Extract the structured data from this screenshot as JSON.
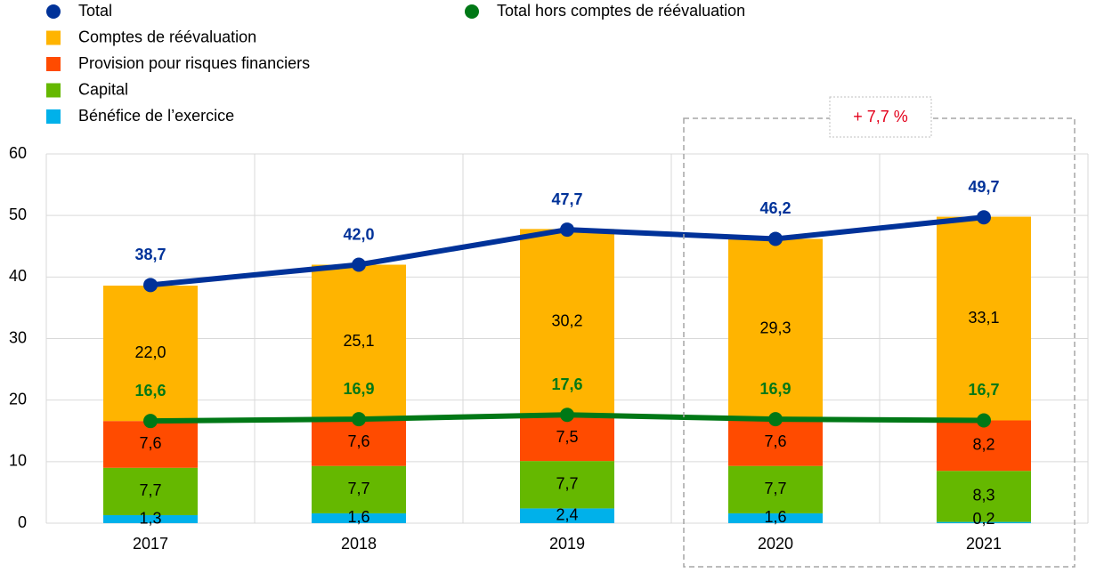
{
  "chart_data": {
    "type": "bar",
    "categories": [
      "2017",
      "2018",
      "2019",
      "2020",
      "2021"
    ],
    "series": [
      {
        "name": "Total",
        "type": "line",
        "color": "#003299",
        "values": [
          38.7,
          42.0,
          47.7,
          46.2,
          49.7
        ],
        "value_labels": [
          "38,7",
          "42,0",
          "47,7",
          "46,2",
          "49,7"
        ]
      },
      {
        "name": "Comptes de réévaluation",
        "type": "bar",
        "color": "#ffb400",
        "values": [
          22.0,
          25.1,
          30.2,
          29.3,
          33.1
        ],
        "value_labels": [
          "22,0",
          "25,1",
          "30,2",
          "29,3",
          "33,1"
        ]
      },
      {
        "name": "Provision pour risques financiers",
        "type": "bar",
        "color": "#ff4b00",
        "values": [
          7.6,
          7.6,
          7.5,
          7.6,
          8.2
        ],
        "value_labels": [
          "7,6",
          "7,6",
          "7,5",
          "7,6",
          "8,2"
        ]
      },
      {
        "name": "Capital",
        "type": "bar",
        "color": "#65b800",
        "values": [
          7.7,
          7.7,
          7.7,
          7.7,
          8.3
        ],
        "value_labels": [
          "7,7",
          "7,7",
          "7,7",
          "7,7",
          "8,3"
        ]
      },
      {
        "name": "Bénéfice de l’exercice",
        "type": "bar",
        "color": "#00b1ea",
        "values": [
          1.3,
          1.6,
          2.4,
          1.6,
          0.2
        ],
        "value_labels": [
          "1,3",
          "1,6",
          "2,4",
          "1,6",
          "0,2"
        ]
      },
      {
        "name": "Total hors comptes de réévaluation",
        "type": "line",
        "color": "#007816",
        "values": [
          16.6,
          16.9,
          17.6,
          16.9,
          16.7
        ],
        "value_labels": [
          "16,6",
          "16,9",
          "17,6",
          "16,9",
          "16,7"
        ]
      }
    ],
    "ylim": [
      0,
      60
    ],
    "yticks": [
      0,
      10,
      20,
      30,
      40,
      50,
      60
    ],
    "grid": true,
    "annotation": "+ 7,7 %"
  }
}
